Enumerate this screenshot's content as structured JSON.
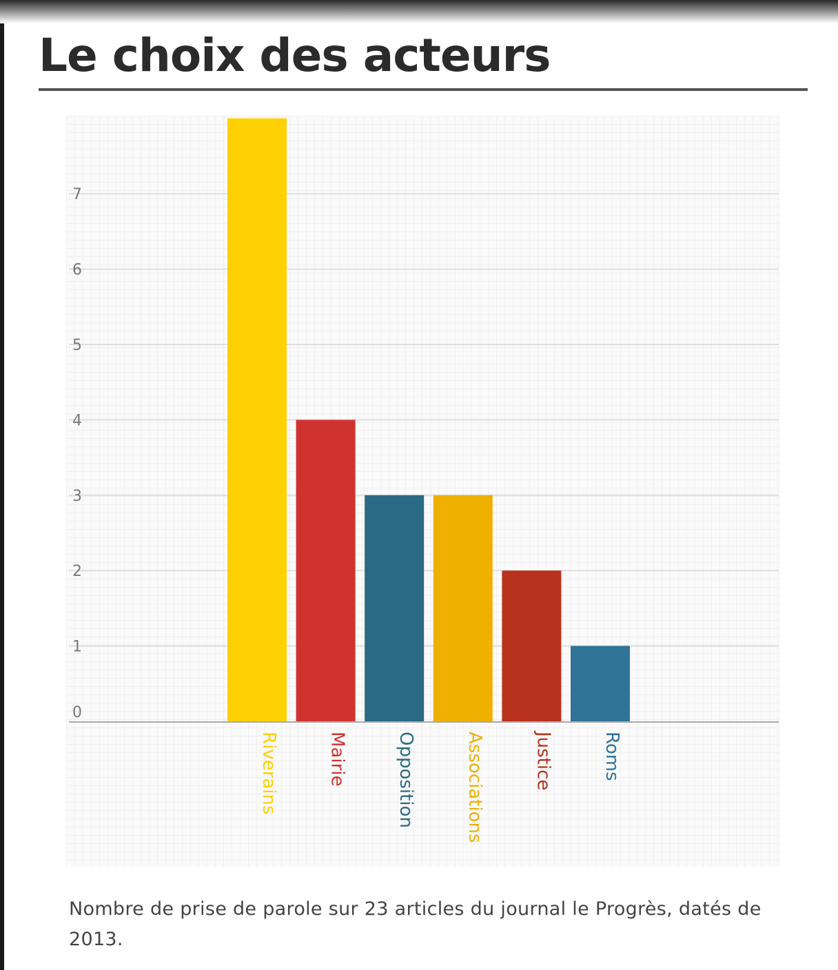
{
  "title": "Le choix des acteurs",
  "caption": "Nombre de prise de parole sur 23 articles du journal le Progrès, datés de 2013.",
  "chart_data": {
    "type": "bar",
    "title": "Le choix des acteurs",
    "xlabel": "",
    "ylabel": "",
    "categories": [
      "Riverains",
      "Mairie",
      "Opposition",
      "Associations",
      "Justice",
      "Roms"
    ],
    "values": [
      8,
      4,
      3,
      3,
      2,
      1
    ],
    "colors": [
      "#FFD100",
      "#D0332F",
      "#2B6A84",
      "#F0B000",
      "#B8321E",
      "#2F7398"
    ],
    "ylim": [
      0,
      8
    ],
    "yticks": [
      "0",
      "1",
      "2",
      "3",
      "4",
      "5",
      "6",
      "7"
    ],
    "grid": true,
    "legend": "none"
  }
}
